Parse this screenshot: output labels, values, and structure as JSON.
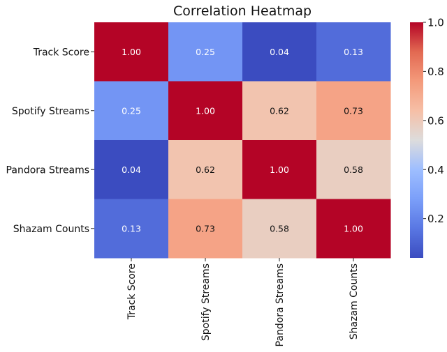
{
  "chart_data": {
    "type": "heatmap",
    "title": "Correlation Heatmap",
    "row_labels": [
      "Track Score",
      "Spotify Streams",
      "Pandora Streams",
      "Shazam Counts"
    ],
    "col_labels": [
      "Track Score",
      "Spotify Streams",
      "Pandora Streams",
      "Shazam Counts"
    ],
    "values": [
      [
        1.0,
        0.25,
        0.04,
        0.13
      ],
      [
        0.25,
        1.0,
        0.62,
        0.73
      ],
      [
        0.04,
        0.62,
        1.0,
        0.58
      ],
      [
        0.13,
        0.73,
        0.58,
        1.0
      ]
    ],
    "value_format": "0.00",
    "colormap": "coolwarm",
    "vmin": 0.04,
    "vmax": 1.0,
    "colorbar_ticks": [
      0.2,
      0.4,
      0.6,
      0.8,
      1.0
    ],
    "colorbar_tick_labels": [
      "0.2",
      "0.4",
      "0.6",
      "0.8",
      "1.0"
    ]
  }
}
